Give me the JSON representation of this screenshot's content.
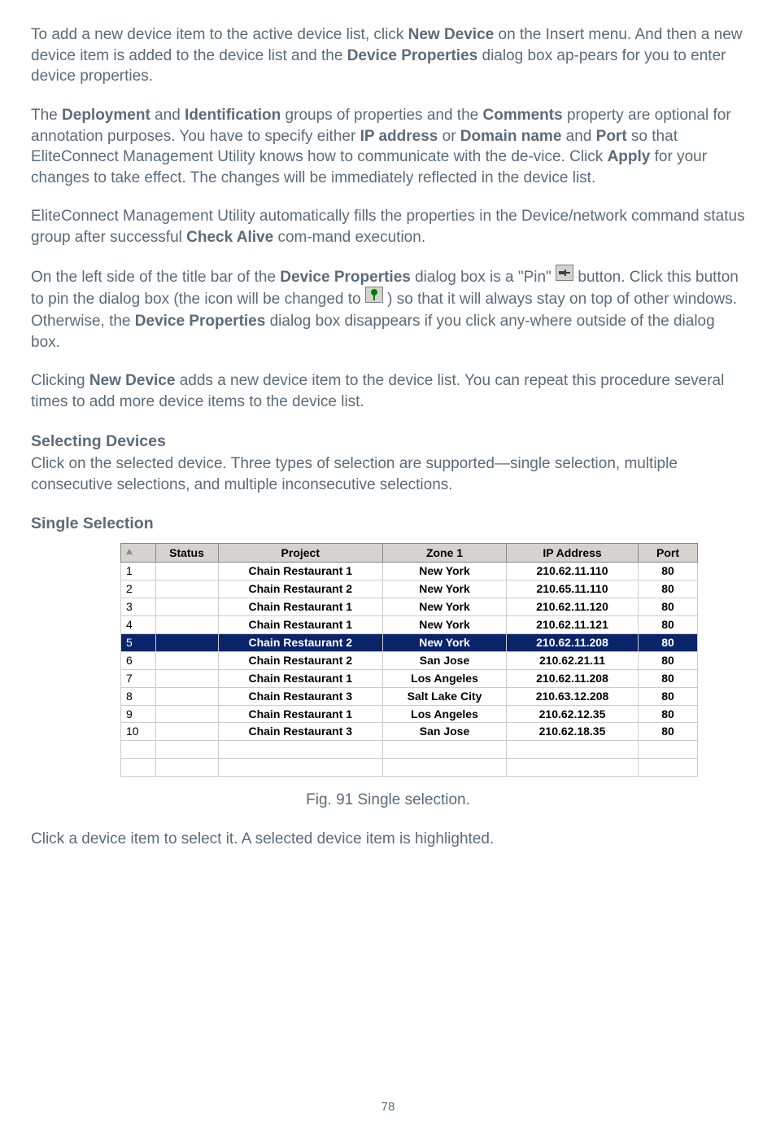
{
  "paragraphs": {
    "p1": {
      "t1": "To add a new device item to the active device list, click ",
      "b1": "New Device",
      "t2": " on the Insert menu. And then a new device item is added to the device list and the ",
      "b2": "Device Properties",
      "t3": " dialog box ap-pears for you to enter device properties."
    },
    "p2": {
      "t1": "The ",
      "b1": "Deployment",
      "t2": " and ",
      "b2": "Identification",
      "t3": " groups of properties and the ",
      "b3": "Comments",
      "t4": " property are optional for annotation purposes. You have to specify either ",
      "b4": "IP address",
      "t5": " or ",
      "b5": "Domain name",
      "t6": " and ",
      "b6": "Port",
      "t7": " so that EliteConnect Management Utility knows how to communicate with the de-vice. Click ",
      "b7": "Apply",
      "t8": " for your changes to take effect. The changes will be immediately reflected in the device list."
    },
    "p3": {
      "t1": "EliteConnect Management Utility automatically fills the properties in the Device/network command status group after successful ",
      "b1": "Check Alive",
      "t2": " com-mand execution."
    },
    "p4": {
      "t1": "On the left side of the title bar of the ",
      "b1": "Device Properties",
      "t2": " dialog box is a \"Pin\"",
      "t3": " button. Click this button to pin the dialog box (the icon will be changed to",
      "t4": " ) so that it will always stay on top of other windows. Otherwise, the ",
      "b2": "Device Properties",
      "t5": " dialog box disappears if you click any-where outside of the dialog box."
    },
    "p5": {
      "t1": "Clicking ",
      "b1": "New Device",
      "t2": " adds a new device item to the device list. You can repeat this procedure several times to add more device items to the device list."
    },
    "h1": "Selecting Devices",
    "p6": "Click on the selected device. Three types of selection are supported—single selection, multiple consecutive selections, and multiple inconsecutive selections.",
    "h2": "Single Selection",
    "figcaption": "Fig. 91 Single selection.",
    "p7": "Click a device item to select it. A selected device item is highlighted."
  },
  "table": {
    "headers": {
      "status": "Status",
      "project": "Project",
      "zone": "Zone 1",
      "ip": "IP Address",
      "port": "Port"
    },
    "rows": [
      {
        "n": "1",
        "status": "",
        "project": "Chain Restaurant 1",
        "zone": "New York",
        "ip": "210.62.11.110",
        "port": "80",
        "selected": false
      },
      {
        "n": "2",
        "status": "",
        "project": "Chain Restaurant 2",
        "zone": "New York",
        "ip": "210.65.11.110",
        "port": "80",
        "selected": false
      },
      {
        "n": "3",
        "status": "",
        "project": "Chain Restaurant 1",
        "zone": "New York",
        "ip": "210.62.11.120",
        "port": "80",
        "selected": false
      },
      {
        "n": "4",
        "status": "",
        "project": "Chain Restaurant 1",
        "zone": "New York",
        "ip": "210.62.11.121",
        "port": "80",
        "selected": false
      },
      {
        "n": "5",
        "status": "",
        "project": "Chain Restaurant 2",
        "zone": "New York",
        "ip": "210.62.11.208",
        "port": "80",
        "selected": true
      },
      {
        "n": "6",
        "status": "",
        "project": "Chain Restaurant 2",
        "zone": "San Jose",
        "ip": "210.62.21.11",
        "port": "80",
        "selected": false
      },
      {
        "n": "7",
        "status": "",
        "project": "Chain Restaurant 1",
        "zone": "Los Angeles",
        "ip": "210.62.11.208",
        "port": "80",
        "selected": false
      },
      {
        "n": "8",
        "status": "",
        "project": "Chain Restaurant 3",
        "zone": "Salt Lake City",
        "ip": "210.63.12.208",
        "port": "80",
        "selected": false
      },
      {
        "n": "9",
        "status": "",
        "project": "Chain Restaurant 1",
        "zone": "Los Angeles",
        "ip": "210.62.12.35",
        "port": "80",
        "selected": false
      },
      {
        "n": "10",
        "status": "",
        "project": "Chain Restaurant 3",
        "zone": "San Jose",
        "ip": "210.62.18.35",
        "port": "80",
        "selected": false
      }
    ]
  },
  "pagenum": "78",
  "colors": {
    "selected_bg": "#0a246a",
    "selected_fg": "#ffffff",
    "header_bg": "#d6d3ce",
    "body_text": "#5a6b7a"
  }
}
